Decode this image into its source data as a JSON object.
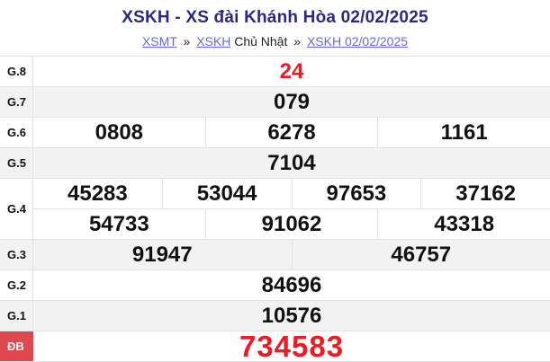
{
  "header": {
    "title": "XSKH - XS đài Khánh Hòa 02/02/2025"
  },
  "breadcrumb": {
    "link1": "XSMT",
    "sep1": "»",
    "link2": "XSKH",
    "day": "Chủ Nhật",
    "sep2": "»",
    "link3": "XSKH 02/02/2025"
  },
  "results": {
    "rows": [
      {
        "prize": "G.8",
        "values": [
          "24"
        ]
      },
      {
        "prize": "G.7",
        "values": [
          "079"
        ]
      },
      {
        "prize": "G.6",
        "values": [
          "0808",
          "6278",
          "1161"
        ]
      },
      {
        "prize": "G.5",
        "values": [
          "7104"
        ]
      },
      {
        "prize": "G.4",
        "line1": [
          "45283",
          "53044",
          "97653",
          "37162"
        ],
        "line2": [
          "54733",
          "91062",
          "43318"
        ]
      },
      {
        "prize": "G.3",
        "values": [
          "91947",
          "46757"
        ]
      },
      {
        "prize": "G.2",
        "values": [
          "84696"
        ]
      },
      {
        "prize": "G.1",
        "values": [
          "10576"
        ]
      },
      {
        "prize": "ĐB",
        "values": [
          "734583"
        ]
      }
    ]
  },
  "colors": {
    "title_navy": "#2a2a86",
    "link_purple": "#6b66d9",
    "number_red": "#ed1c24",
    "special_label_bg": "#e0484f",
    "row_alt_bg": "#f2f2f2",
    "border": "#e3e3e3"
  }
}
